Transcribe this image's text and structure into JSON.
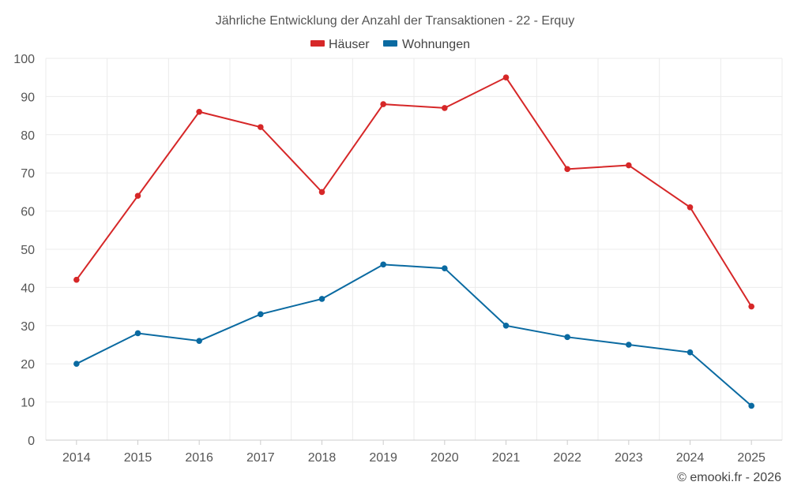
{
  "chart_data": {
    "type": "line",
    "title": "Jährliche Entwicklung der Anzahl der Transaktionen - 22 - Erquy",
    "categories": [
      "2014",
      "2015",
      "2016",
      "2017",
      "2018",
      "2019",
      "2020",
      "2021",
      "2022",
      "2023",
      "2024",
      "2025"
    ],
    "series": [
      {
        "name": "Häuser",
        "color": "#d62728",
        "values": [
          42,
          64,
          86,
          82,
          65,
          88,
          87,
          95,
          71,
          72,
          61,
          35
        ]
      },
      {
        "name": "Wohnungen",
        "color": "#0a6aa1",
        "values": [
          20,
          28,
          26,
          33,
          37,
          46,
          45,
          30,
          27,
          25,
          23,
          9
        ]
      }
    ],
    "ylim": [
      0,
      100
    ],
    "yticks": [
      0,
      10,
      20,
      30,
      40,
      50,
      60,
      70,
      80,
      90,
      100
    ],
    "grid": true,
    "legend": "top-center",
    "xlabel": "",
    "ylabel": ""
  },
  "credit": "© emooki.fr - 2026"
}
